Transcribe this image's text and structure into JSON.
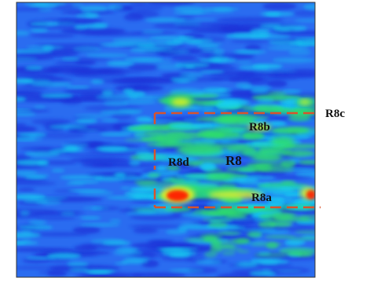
{
  "figure": {
    "palette": {
      "deep": "#1a2fd6",
      "base": "#2a6cf0",
      "cyan": "#18d2f0",
      "green": "#2fe06a",
      "yellow": "#e6f020",
      "red": "#ff1a00",
      "outline": "#ffffff",
      "dash": "#d9532b"
    },
    "labels": {
      "r8": "R8",
      "r8a": "R8a",
      "r8b": "R8b",
      "r8c": "R8c",
      "r8d": "R8d"
    }
  }
}
